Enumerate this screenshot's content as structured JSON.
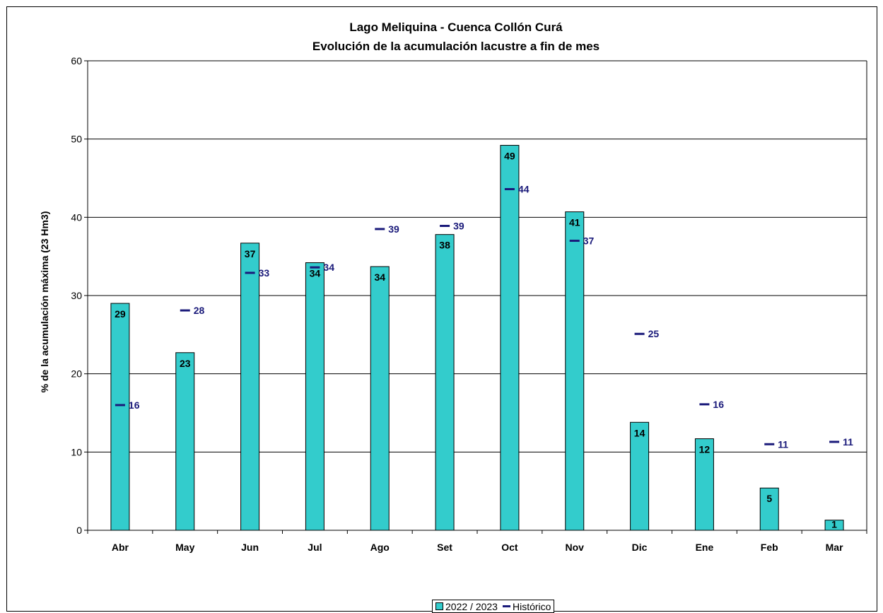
{
  "colors": {
    "bar_fill": "#33CCCC",
    "bar_stroke": "#000000",
    "historic": "#1A1A7A",
    "grid": "#000000"
  },
  "chart_data": {
    "type": "bar",
    "title": "Lago Meliquina - Cuenca Collón Curá",
    "subtitle": "Evolución de la acumulación lacustre a fin de mes",
    "xlabel": "",
    "ylabel": "% de la acumulación máxima (23 Hm3)",
    "ylim": [
      0,
      60
    ],
    "yticks": [
      0,
      10,
      20,
      30,
      40,
      50,
      60
    ],
    "grid": true,
    "legend_position": "bottom",
    "categories": [
      "Abr",
      "May",
      "Jun",
      "Jul",
      "Ago",
      "Set",
      "Oct",
      "Nov",
      "Dic",
      "Ene",
      "Feb",
      "Mar"
    ],
    "series": [
      {
        "name": "2022 / 2023",
        "kind": "bar",
        "values": [
          29,
          22.7,
          36.7,
          34.2,
          33.7,
          37.8,
          49.2,
          40.7,
          13.8,
          11.7,
          5.4,
          1.3
        ],
        "labels": [
          "29",
          "23",
          "37",
          "34",
          "34",
          "38",
          "49",
          "41",
          "14",
          "12",
          "5",
          "1"
        ]
      },
      {
        "name": "Histórico",
        "kind": "marker",
        "values": [
          16,
          28.1,
          32.9,
          33.6,
          38.5,
          38.9,
          43.6,
          37,
          25.1,
          16.1,
          11,
          11.3
        ],
        "labels": [
          "16",
          "28",
          "33",
          "34",
          "39",
          "39",
          "44",
          "37",
          "25",
          "16",
          "11",
          "11"
        ]
      }
    ]
  }
}
